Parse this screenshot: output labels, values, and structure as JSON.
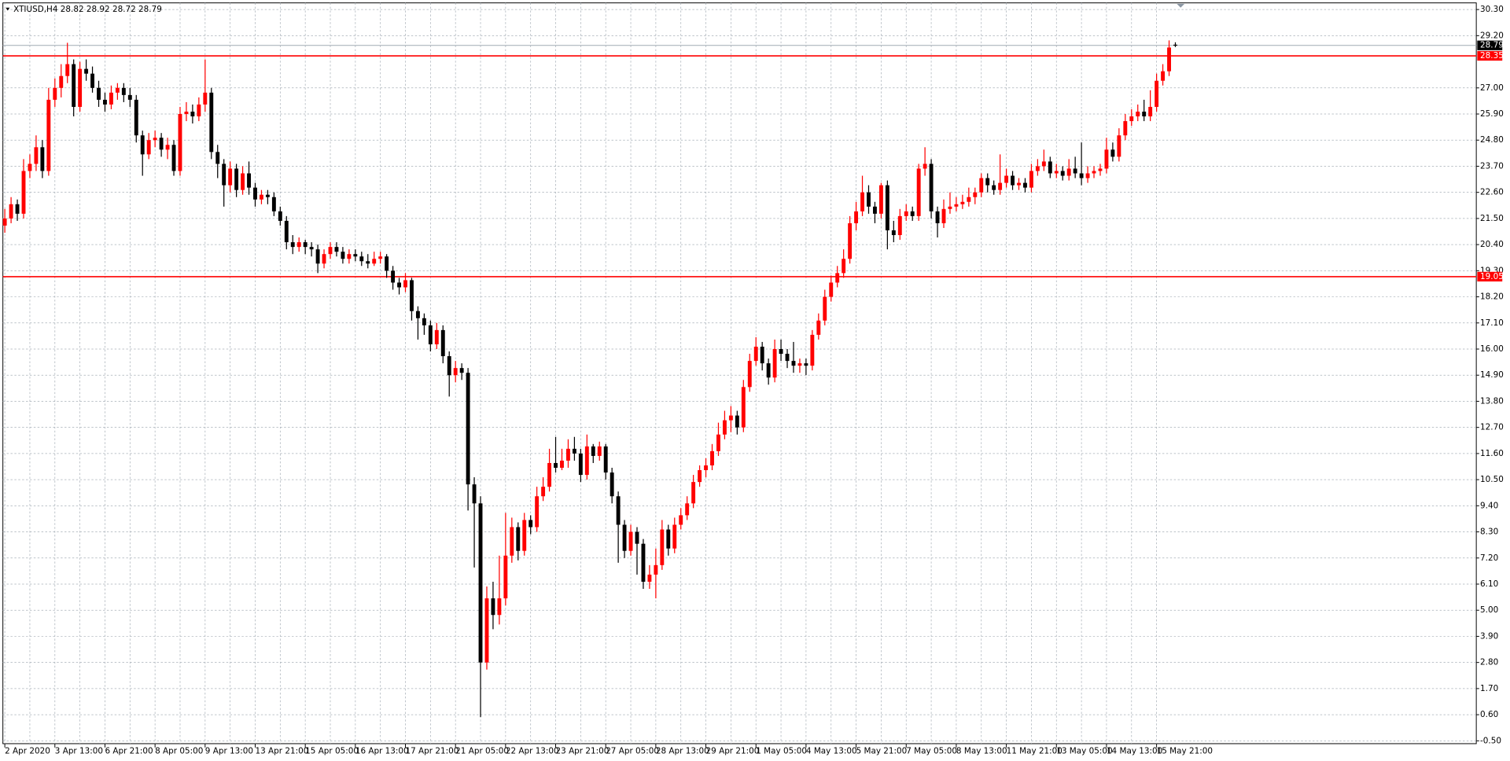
{
  "chart_data": {
    "type": "candlestick",
    "title": "XTIUSD,H4 28.82 28.92 28.72 28.79",
    "up_color": "#ff0000",
    "down_color": "#000000",
    "grid": true,
    "ylim": [
      -0.62,
      30.58
    ],
    "yticks": [
      {
        "value": 30.3,
        "label": "30.30"
      },
      {
        "value": 29.2,
        "label": "29.20"
      },
      {
        "value": 27,
        "label": "27.00"
      },
      {
        "value": 25.9,
        "label": "25.90"
      },
      {
        "value": 24.8,
        "label": "24.80"
      },
      {
        "value": 23.7,
        "label": "23.70"
      },
      {
        "value": 22.6,
        "label": "22.60"
      },
      {
        "value": 21.5,
        "label": "21.50"
      },
      {
        "value": 20.4,
        "label": "20.40"
      },
      {
        "value": 19.3,
        "label": "19.30"
      },
      {
        "value": 18.2,
        "label": "18.20"
      },
      {
        "value": 17.1,
        "label": "17.10"
      },
      {
        "value": 16,
        "label": "16.00"
      },
      {
        "value": 14.9,
        "label": "14.90"
      },
      {
        "value": 13.8,
        "label": "13.80"
      },
      {
        "value": 12.7,
        "label": "12.70"
      },
      {
        "value": 11.6,
        "label": "11.60"
      },
      {
        "value": 10.5,
        "label": "10.50"
      },
      {
        "value": 9.4,
        "label": "9.40"
      },
      {
        "value": 8.3,
        "label": "8.30"
      },
      {
        "value": 7.2,
        "label": "7.20"
      },
      {
        "value": 6.1,
        "label": "6.10"
      },
      {
        "value": 5,
        "label": "5.00"
      },
      {
        "value": 3.9,
        "label": "3.90"
      },
      {
        "value": 2.8,
        "label": "2.80"
      },
      {
        "value": 1.7,
        "label": "1.70"
      },
      {
        "value": 0.6,
        "label": "0.60"
      },
      {
        "value": -0.5,
        "label": "-0.50"
      }
    ],
    "hlines": [
      {
        "value": 28.35,
        "color": "#ff0000"
      },
      {
        "value": 19.05,
        "color": "#ff0000"
      }
    ],
    "current_price": {
      "value": 28.79,
      "label": "28.79",
      "color": "#000000"
    },
    "categories": [
      "2 Apr 2020",
      null,
      null,
      null,
      null,
      null,
      null,
      null,
      "3 Apr 13:00",
      null,
      null,
      null,
      null,
      null,
      null,
      null,
      "6 Apr 21:00",
      null,
      null,
      null,
      null,
      null,
      null,
      null,
      "8 Apr 05:00",
      null,
      null,
      null,
      null,
      null,
      null,
      null,
      "9 Apr 13:00",
      null,
      null,
      null,
      null,
      null,
      null,
      null,
      "13 Apr 21:00",
      null,
      null,
      null,
      null,
      null,
      null,
      null,
      "15 Apr 05:00",
      null,
      null,
      null,
      null,
      null,
      null,
      null,
      "16 Apr 13:00",
      null,
      null,
      null,
      null,
      null,
      null,
      null,
      "17 Apr 21:00",
      null,
      null,
      null,
      null,
      null,
      null,
      null,
      "21 Apr 05:00",
      null,
      null,
      null,
      null,
      null,
      null,
      null,
      "22 Apr 13:00",
      null,
      null,
      null,
      null,
      null,
      null,
      null,
      "23 Apr 21:00",
      null,
      null,
      null,
      null,
      null,
      null,
      null,
      "27 Apr 05:00",
      null,
      null,
      null,
      null,
      null,
      null,
      null,
      "28 Apr 13:00",
      null,
      null,
      null,
      null,
      null,
      null,
      null,
      "29 Apr 21:00",
      null,
      null,
      null,
      null,
      null,
      null,
      null,
      "1 May 05:00",
      null,
      null,
      null,
      null,
      null,
      null,
      null,
      "4 May 13:00",
      null,
      null,
      null,
      null,
      null,
      null,
      null,
      "5 May 21:00",
      null,
      null,
      null,
      null,
      null,
      null,
      null,
      "7 May 05:00",
      null,
      null,
      null,
      null,
      null,
      null,
      null,
      "8 May 13:00",
      null,
      null,
      null,
      null,
      null,
      null,
      null,
      "11 May 21:00",
      null,
      null,
      null,
      null,
      null,
      null,
      null,
      "13 May 05:00",
      null,
      null,
      null,
      null,
      null,
      null,
      null,
      "14 May 13:00",
      null,
      null,
      null,
      null,
      null,
      null,
      null,
      "15 May 21:00",
      null,
      null,
      null
    ],
    "ohlc": [
      [
        21.2,
        21.9,
        20.9,
        21.5
      ],
      [
        21.5,
        22.4,
        21.3,
        22.1
      ],
      [
        22.1,
        22.3,
        21.4,
        21.7
      ],
      [
        21.7,
        24.0,
        21.5,
        23.5
      ],
      [
        23.5,
        24.2,
        23.2,
        23.8
      ],
      [
        23.8,
        25.0,
        23.5,
        24.5
      ],
      [
        24.5,
        24.8,
        23.2,
        23.5
      ],
      [
        23.5,
        27.0,
        23.3,
        26.5
      ],
      [
        26.5,
        27.4,
        26.2,
        27.0
      ],
      [
        27.0,
        28.0,
        26.6,
        27.5
      ],
      [
        27.5,
        28.9,
        27.2,
        28.0
      ],
      [
        28.0,
        28.2,
        25.8,
        26.2
      ],
      [
        26.2,
        28.1,
        26.0,
        27.8
      ],
      [
        27.8,
        28.2,
        27.3,
        27.6
      ],
      [
        27.6,
        27.9,
        26.8,
        27.0
      ],
      [
        27.0,
        27.3,
        26.2,
        26.5
      ],
      [
        26.5,
        26.8,
        26.0,
        26.3
      ],
      [
        26.3,
        27.1,
        26.1,
        26.8
      ],
      [
        26.8,
        27.2,
        26.5,
        27.0
      ],
      [
        27.0,
        27.2,
        26.4,
        26.7
      ],
      [
        26.7,
        27.0,
        26.2,
        26.5
      ],
      [
        26.5,
        26.7,
        24.7,
        25.0
      ],
      [
        25.0,
        25.2,
        23.3,
        24.2
      ],
      [
        24.2,
        25.1,
        24.0,
        24.8
      ],
      [
        24.8,
        25.2,
        24.5,
        24.9
      ],
      [
        24.9,
        25.1,
        24.1,
        24.4
      ],
      [
        24.4,
        24.9,
        24.0,
        24.6
      ],
      [
        24.6,
        24.8,
        23.3,
        23.5
      ],
      [
        23.5,
        26.2,
        23.3,
        25.9
      ],
      [
        25.9,
        26.4,
        25.6,
        26.0
      ],
      [
        26.0,
        26.3,
        25.5,
        25.8
      ],
      [
        25.8,
        26.6,
        25.6,
        26.3
      ],
      [
        26.3,
        28.2,
        26.0,
        26.8
      ],
      [
        26.8,
        27.0,
        24.0,
        24.3
      ],
      [
        24.3,
        24.6,
        23.2,
        23.8
      ],
      [
        23.8,
        24.0,
        22.0,
        22.9
      ],
      [
        22.9,
        23.9,
        22.6,
        23.6
      ],
      [
        23.6,
        23.8,
        22.4,
        22.7
      ],
      [
        22.7,
        23.7,
        22.5,
        23.4
      ],
      [
        23.4,
        23.9,
        22.5,
        22.8
      ],
      [
        22.8,
        23.0,
        22.0,
        22.3
      ],
      [
        22.3,
        22.7,
        22.1,
        22.5
      ],
      [
        22.5,
        22.7,
        22.1,
        22.4
      ],
      [
        22.4,
        22.6,
        21.6,
        21.8
      ],
      [
        21.8,
        22.0,
        21.2,
        21.4
      ],
      [
        21.4,
        21.6,
        20.2,
        20.5
      ],
      [
        20.5,
        20.8,
        20.0,
        20.3
      ],
      [
        20.3,
        20.7,
        20.1,
        20.5
      ],
      [
        20.5,
        20.6,
        20.0,
        20.3
      ],
      [
        20.3,
        20.5,
        19.9,
        20.2
      ],
      [
        20.2,
        20.4,
        19.2,
        19.6
      ],
      [
        19.6,
        20.2,
        19.4,
        20.0
      ],
      [
        20.0,
        20.5,
        19.8,
        20.3
      ],
      [
        20.3,
        20.5,
        19.9,
        20.1
      ],
      [
        20.1,
        20.3,
        19.6,
        19.8
      ],
      [
        19.8,
        20.2,
        19.6,
        20.0
      ],
      [
        20.0,
        20.2,
        19.7,
        19.9
      ],
      [
        19.9,
        20.1,
        19.5,
        19.7
      ],
      [
        19.7,
        20.0,
        19.4,
        19.6
      ],
      [
        19.6,
        20.1,
        19.5,
        19.8
      ],
      [
        19.8,
        20.1,
        19.6,
        19.9
      ],
      [
        19.9,
        20.0,
        19.0,
        19.3
      ],
      [
        19.3,
        19.5,
        18.5,
        18.8
      ],
      [
        18.8,
        19.0,
        18.3,
        18.6
      ],
      [
        18.6,
        19.2,
        18.4,
        18.9
      ],
      [
        18.9,
        19.0,
        17.2,
        17.6
      ],
      [
        17.6,
        17.8,
        16.4,
        17.3
      ],
      [
        17.3,
        17.5,
        16.6,
        17.0
      ],
      [
        17.0,
        17.2,
        15.9,
        16.2
      ],
      [
        16.2,
        17.1,
        16.0,
        16.8
      ],
      [
        16.8,
        17.0,
        15.4,
        15.7
      ],
      [
        15.7,
        15.9,
        14.0,
        14.9
      ],
      [
        14.9,
        15.5,
        14.6,
        15.2
      ],
      [
        15.2,
        15.4,
        14.7,
        15.0
      ],
      [
        15.0,
        15.2,
        9.2,
        10.3
      ],
      [
        10.3,
        10.6,
        6.8,
        9.5
      ],
      [
        9.5,
        9.8,
        0.5,
        2.8
      ],
      [
        2.8,
        6.0,
        2.5,
        5.5
      ],
      [
        5.5,
        6.2,
        4.2,
        4.8
      ],
      [
        4.8,
        7.3,
        4.4,
        5.5
      ],
      [
        5.5,
        9.1,
        5.2,
        7.3
      ],
      [
        7.3,
        8.9,
        7.0,
        8.5
      ],
      [
        8.5,
        8.7,
        7.1,
        7.5
      ],
      [
        7.5,
        9.1,
        7.3,
        8.8
      ],
      [
        8.8,
        9.0,
        8.2,
        8.5
      ],
      [
        8.5,
        10.2,
        8.3,
        9.8
      ],
      [
        9.8,
        10.6,
        9.6,
        10.2
      ],
      [
        10.2,
        11.8,
        10.0,
        11.2
      ],
      [
        11.2,
        12.3,
        10.8,
        11.0
      ],
      [
        11.0,
        11.8,
        10.9,
        11.3
      ],
      [
        11.3,
        12.2,
        11.0,
        11.8
      ],
      [
        11.8,
        12.3,
        11.3,
        11.6
      ],
      [
        11.6,
        11.8,
        10.4,
        10.7
      ],
      [
        10.7,
        12.4,
        10.5,
        11.9
      ],
      [
        11.9,
        12.0,
        11.2,
        11.5
      ],
      [
        11.5,
        12.1,
        11.3,
        11.9
      ],
      [
        11.9,
        12.0,
        10.5,
        10.8
      ],
      [
        10.8,
        11.0,
        9.5,
        9.8
      ],
      [
        9.8,
        10.0,
        7.0,
        8.6
      ],
      [
        8.6,
        8.8,
        7.2,
        7.5
      ],
      [
        7.5,
        8.6,
        7.3,
        8.3
      ],
      [
        8.3,
        8.5,
        6.5,
        7.8
      ],
      [
        7.8,
        8.0,
        5.9,
        6.2
      ],
      [
        6.2,
        6.9,
        5.9,
        6.5
      ],
      [
        6.5,
        7.6,
        5.5,
        6.9
      ],
      [
        6.9,
        8.8,
        6.7,
        8.4
      ],
      [
        8.4,
        8.6,
        7.3,
        7.6
      ],
      [
        7.6,
        8.9,
        7.4,
        8.6
      ],
      [
        8.6,
        9.3,
        8.4,
        9.0
      ],
      [
        9.0,
        9.8,
        8.8,
        9.5
      ],
      [
        9.5,
        10.7,
        9.3,
        10.4
      ],
      [
        10.4,
        11.1,
        10.2,
        10.9
      ],
      [
        10.9,
        11.4,
        10.6,
        11.1
      ],
      [
        11.1,
        12.0,
        10.9,
        11.7
      ],
      [
        11.7,
        12.9,
        11.5,
        12.4
      ],
      [
        12.4,
        13.4,
        12.2,
        13.0
      ],
      [
        13.0,
        13.6,
        12.5,
        13.2
      ],
      [
        13.2,
        13.4,
        12.4,
        12.7
      ],
      [
        12.7,
        14.7,
        12.5,
        14.4
      ],
      [
        14.4,
        15.8,
        14.2,
        15.5
      ],
      [
        15.5,
        16.5,
        15.3,
        16.1
      ],
      [
        16.1,
        16.3,
        15.1,
        15.4
      ],
      [
        15.4,
        15.6,
        14.5,
        14.8
      ],
      [
        14.8,
        16.4,
        14.6,
        16.0
      ],
      [
        16.0,
        16.4,
        15.5,
        15.8
      ],
      [
        15.8,
        16.0,
        15.2,
        15.5
      ],
      [
        15.5,
        16.3,
        15.0,
        15.3
      ],
      [
        15.3,
        15.6,
        15.0,
        15.4
      ],
      [
        15.4,
        15.6,
        14.9,
        15.3
      ],
      [
        15.3,
        16.8,
        15.1,
        16.6
      ],
      [
        16.6,
        17.5,
        16.4,
        17.2
      ],
      [
        17.2,
        18.5,
        17.0,
        18.2
      ],
      [
        18.2,
        19.1,
        18.0,
        18.8
      ],
      [
        18.8,
        19.5,
        18.6,
        19.2
      ],
      [
        19.2,
        20.2,
        19.0,
        19.8
      ],
      [
        19.8,
        21.6,
        19.6,
        21.3
      ],
      [
        21.3,
        22.2,
        21.0,
        21.8
      ],
      [
        21.8,
        23.3,
        21.6,
        22.6
      ],
      [
        22.6,
        22.9,
        21.7,
        22.0
      ],
      [
        22.0,
        22.2,
        21.3,
        21.7
      ],
      [
        21.7,
        23.0,
        21.5,
        22.9
      ],
      [
        22.9,
        23.1,
        20.2,
        21.0
      ],
      [
        21.0,
        21.4,
        20.5,
        20.8
      ],
      [
        20.8,
        21.9,
        20.6,
        21.6
      ],
      [
        21.6,
        22.1,
        21.4,
        21.8
      ],
      [
        21.8,
        22.0,
        21.4,
        21.6
      ],
      [
        21.6,
        23.8,
        21.4,
        23.6
      ],
      [
        23.6,
        24.5,
        23.3,
        23.8
      ],
      [
        23.8,
        24.0,
        21.5,
        21.8
      ],
      [
        21.8,
        22.0,
        20.7,
        21.3
      ],
      [
        21.3,
        22.3,
        21.1,
        21.9
      ],
      [
        21.9,
        22.6,
        21.7,
        22.0
      ],
      [
        22.0,
        22.4,
        21.8,
        22.1
      ],
      [
        22.1,
        22.5,
        21.9,
        22.2
      ],
      [
        22.2,
        22.8,
        22.0,
        22.4
      ],
      [
        22.4,
        22.8,
        22.1,
        22.6
      ],
      [
        22.6,
        23.4,
        22.4,
        23.2
      ],
      [
        23.2,
        23.4,
        22.6,
        22.9
      ],
      [
        22.9,
        23.1,
        22.5,
        22.7
      ],
      [
        22.7,
        24.2,
        22.5,
        23.0
      ],
      [
        23.0,
        23.6,
        22.8,
        23.3
      ],
      [
        23.3,
        23.5,
        22.7,
        22.9
      ],
      [
        22.9,
        23.2,
        22.7,
        23.0
      ],
      [
        23.0,
        23.2,
        22.6,
        22.8
      ],
      [
        22.8,
        23.8,
        22.6,
        23.5
      ],
      [
        23.5,
        24.0,
        23.3,
        23.7
      ],
      [
        23.7,
        24.4,
        23.5,
        23.9
      ],
      [
        23.9,
        24.1,
        23.2,
        23.4
      ],
      [
        23.4,
        23.8,
        23.2,
        23.5
      ],
      [
        23.5,
        23.7,
        23.1,
        23.3
      ],
      [
        23.3,
        24.0,
        23.1,
        23.6
      ],
      [
        23.6,
        24.1,
        23.2,
        23.4
      ],
      [
        23.4,
        24.7,
        22.9,
        23.2
      ],
      [
        23.2,
        23.7,
        23.0,
        23.4
      ],
      [
        23.4,
        23.7,
        23.2,
        23.5
      ],
      [
        23.5,
        23.8,
        23.3,
        23.6
      ],
      [
        23.6,
        24.9,
        23.4,
        24.4
      ],
      [
        24.4,
        24.7,
        23.9,
        24.1
      ],
      [
        24.1,
        25.3,
        23.9,
        25.0
      ],
      [
        25.0,
        25.9,
        24.8,
        25.6
      ],
      [
        25.6,
        26.1,
        25.4,
        25.8
      ],
      [
        25.8,
        26.3,
        25.6,
        26.0
      ],
      [
        26.0,
        26.5,
        25.6,
        25.8
      ],
      [
        25.8,
        26.9,
        25.6,
        26.2
      ],
      [
        26.2,
        27.6,
        26.0,
        27.3
      ],
      [
        27.3,
        28.0,
        27.1,
        27.7
      ],
      [
        27.7,
        29.0,
        27.5,
        28.7
      ],
      [
        28.82,
        28.92,
        28.72,
        28.79
      ]
    ]
  }
}
